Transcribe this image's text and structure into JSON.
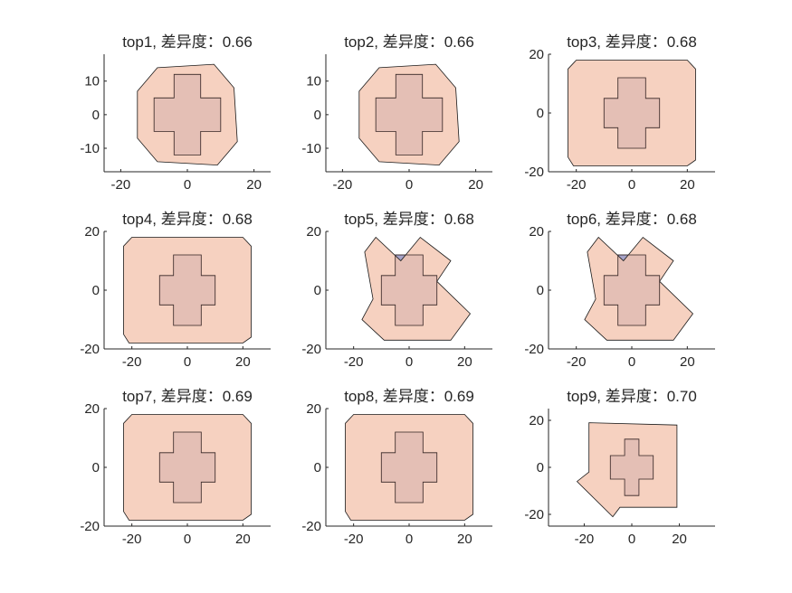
{
  "colors": {
    "background": "#ffffff",
    "axis": "#262626",
    "outer_fill": "#f4c6b0",
    "inner_fill": "#a6a3c9",
    "edge": "#1a1a1a"
  },
  "chart_data": [
    {
      "type": "area",
      "title": "top1, 差异度：0.66",
      "xlim": [
        -25,
        25
      ],
      "ylim": [
        -17,
        18
      ],
      "xticks": [
        -20,
        0,
        20
      ],
      "yticks": [
        -10,
        0,
        10
      ],
      "outer": [
        [
          -15,
          7
        ],
        [
          -9,
          14
        ],
        [
          8,
          15
        ],
        [
          14,
          8
        ],
        [
          15,
          -8
        ],
        [
          9,
          -15
        ],
        [
          -9,
          -14
        ],
        [
          -15,
          -7
        ]
      ],
      "inner": [
        [
          -4,
          12
        ],
        [
          4,
          12
        ],
        [
          4,
          5
        ],
        [
          10,
          5
        ],
        [
          10,
          -5
        ],
        [
          4,
          -5
        ],
        [
          4,
          -12
        ],
        [
          -4,
          -12
        ],
        [
          -4,
          -5
        ],
        [
          -10,
          -5
        ],
        [
          -10,
          5
        ],
        [
          -4,
          5
        ]
      ]
    },
    {
      "type": "area",
      "title": "top2, 差异度：0.66",
      "xlim": [
        -25,
        25
      ],
      "ylim": [
        -17,
        18
      ],
      "xticks": [
        -20,
        0,
        20
      ],
      "yticks": [
        -10,
        0,
        10
      ],
      "outer": [
        [
          -15,
          7
        ],
        [
          -9,
          14
        ],
        [
          8,
          15
        ],
        [
          14,
          8
        ],
        [
          15,
          -8
        ],
        [
          9,
          -15
        ],
        [
          -9,
          -14
        ],
        [
          -15,
          -7
        ]
      ],
      "inner": [
        [
          -4,
          12
        ],
        [
          4,
          12
        ],
        [
          4,
          5
        ],
        [
          10,
          5
        ],
        [
          10,
          -5
        ],
        [
          4,
          -5
        ],
        [
          4,
          -12
        ],
        [
          -4,
          -12
        ],
        [
          -4,
          -5
        ],
        [
          -10,
          -5
        ],
        [
          -10,
          5
        ],
        [
          -4,
          5
        ]
      ]
    },
    {
      "type": "area",
      "title": "top3, 差异度：0.68",
      "xlim": [
        -30,
        30
      ],
      "ylim": [
        -20,
        20
      ],
      "xticks": [
        -20,
        0,
        20
      ],
      "yticks": [
        -20,
        0,
        20
      ],
      "outer": [
        [
          -23,
          15
        ],
        [
          -20,
          18
        ],
        [
          20,
          18
        ],
        [
          23,
          15
        ],
        [
          23,
          -16
        ],
        [
          20,
          -18
        ],
        [
          -21,
          -18
        ],
        [
          -23,
          -15
        ]
      ],
      "inner": [
        [
          -5,
          12
        ],
        [
          5,
          12
        ],
        [
          5,
          5
        ],
        [
          10,
          5
        ],
        [
          10,
          -5
        ],
        [
          5,
          -5
        ],
        [
          5,
          -12
        ],
        [
          -5,
          -12
        ],
        [
          -5,
          -5
        ],
        [
          -10,
          -5
        ],
        [
          -10,
          5
        ],
        [
          -5,
          5
        ]
      ]
    },
    {
      "type": "area",
      "title": "top4, 差异度：0.68",
      "xlim": [
        -30,
        30
      ],
      "ylim": [
        -20,
        20
      ],
      "xticks": [
        -20,
        0,
        20
      ],
      "yticks": [
        -20,
        0,
        20
      ],
      "outer": [
        [
          -23,
          15
        ],
        [
          -20,
          18
        ],
        [
          20,
          18
        ],
        [
          23,
          15
        ],
        [
          23,
          -16
        ],
        [
          20,
          -18
        ],
        [
          -21,
          -18
        ],
        [
          -23,
          -15
        ]
      ],
      "inner": [
        [
          -5,
          12
        ],
        [
          5,
          12
        ],
        [
          5,
          5
        ],
        [
          10,
          5
        ],
        [
          10,
          -5
        ],
        [
          5,
          -5
        ],
        [
          5,
          -12
        ],
        [
          -5,
          -12
        ],
        [
          -5,
          -5
        ],
        [
          -10,
          -5
        ],
        [
          -10,
          5
        ],
        [
          -5,
          5
        ]
      ]
    },
    {
      "type": "area",
      "title": "top5, 差异度：0.68",
      "xlim": [
        -30,
        30
      ],
      "ylim": [
        -20,
        20
      ],
      "xticks": [
        -20,
        0,
        20
      ],
      "yticks": [
        -20,
        0,
        20
      ],
      "outer": [
        [
          -16,
          13
        ],
        [
          -12,
          18
        ],
        [
          -3,
          10
        ],
        [
          4,
          18
        ],
        [
          15,
          10
        ],
        [
          10,
          3
        ],
        [
          22,
          -8
        ],
        [
          15,
          -17
        ],
        [
          -9,
          -17
        ],
        [
          -17,
          -10
        ],
        [
          -13,
          -3
        ]
      ],
      "inner": [
        [
          -5,
          12
        ],
        [
          5,
          12
        ],
        [
          5,
          5
        ],
        [
          10,
          5
        ],
        [
          10,
          -5
        ],
        [
          5,
          -5
        ],
        [
          5,
          -12
        ],
        [
          -5,
          -12
        ],
        [
          -5,
          -5
        ],
        [
          -10,
          -5
        ],
        [
          -10,
          5
        ],
        [
          -5,
          5
        ]
      ]
    },
    {
      "type": "area",
      "title": "top6, 差异度：0.68",
      "xlim": [
        -30,
        30
      ],
      "ylim": [
        -20,
        20
      ],
      "xticks": [
        -20,
        0,
        20
      ],
      "yticks": [
        -20,
        0,
        20
      ],
      "outer": [
        [
          -16,
          13
        ],
        [
          -12,
          18
        ],
        [
          -3,
          10
        ],
        [
          4,
          18
        ],
        [
          15,
          10
        ],
        [
          10,
          3
        ],
        [
          22,
          -8
        ],
        [
          15,
          -17
        ],
        [
          -9,
          -17
        ],
        [
          -17,
          -10
        ],
        [
          -13,
          -3
        ]
      ],
      "inner": [
        [
          -5,
          12
        ],
        [
          5,
          12
        ],
        [
          5,
          5
        ],
        [
          10,
          5
        ],
        [
          10,
          -5
        ],
        [
          5,
          -5
        ],
        [
          5,
          -12
        ],
        [
          -5,
          -12
        ],
        [
          -5,
          -5
        ],
        [
          -10,
          -5
        ],
        [
          -10,
          5
        ],
        [
          -5,
          5
        ]
      ]
    },
    {
      "type": "area",
      "title": "top7, 差异度：0.69",
      "xlim": [
        -30,
        30
      ],
      "ylim": [
        -20,
        20
      ],
      "xticks": [
        -20,
        0,
        20
      ],
      "yticks": [
        -20,
        0,
        20
      ],
      "outer": [
        [
          -23,
          15
        ],
        [
          -20,
          18
        ],
        [
          20,
          18
        ],
        [
          23,
          15
        ],
        [
          23,
          -16
        ],
        [
          20,
          -18
        ],
        [
          -21,
          -18
        ],
        [
          -23,
          -15
        ]
      ],
      "inner": [
        [
          -5,
          12
        ],
        [
          5,
          12
        ],
        [
          5,
          5
        ],
        [
          10,
          5
        ],
        [
          10,
          -5
        ],
        [
          5,
          -5
        ],
        [
          5,
          -12
        ],
        [
          -5,
          -12
        ],
        [
          -5,
          -5
        ],
        [
          -10,
          -5
        ],
        [
          -10,
          5
        ],
        [
          -5,
          5
        ]
      ]
    },
    {
      "type": "area",
      "title": "top8, 差异度：0.69",
      "xlim": [
        -30,
        30
      ],
      "ylim": [
        -20,
        20
      ],
      "xticks": [
        -20,
        0,
        20
      ],
      "yticks": [
        -20,
        0,
        20
      ],
      "outer": [
        [
          -23,
          15
        ],
        [
          -20,
          18
        ],
        [
          20,
          18
        ],
        [
          23,
          15
        ],
        [
          23,
          -16
        ],
        [
          20,
          -18
        ],
        [
          -21,
          -18
        ],
        [
          -23,
          -15
        ]
      ],
      "inner": [
        [
          -5,
          12
        ],
        [
          5,
          12
        ],
        [
          5,
          5
        ],
        [
          10,
          5
        ],
        [
          10,
          -5
        ],
        [
          5,
          -5
        ],
        [
          5,
          -12
        ],
        [
          -5,
          -12
        ],
        [
          -5,
          -5
        ],
        [
          -10,
          -5
        ],
        [
          -10,
          5
        ],
        [
          -5,
          5
        ]
      ]
    },
    {
      "type": "area",
      "title": "top9, 差异度：0.70",
      "xlim": [
        -35,
        35
      ],
      "ylim": [
        -25,
        25
      ],
      "xticks": [
        -20,
        0,
        20
      ],
      "yticks": [
        -20,
        0,
        20
      ],
      "outer": [
        [
          -18,
          19
        ],
        [
          19,
          18
        ],
        [
          19,
          -17
        ],
        [
          -5,
          -17
        ],
        [
          -8,
          -21
        ],
        [
          -23,
          -6
        ],
        [
          -18,
          -2
        ]
      ],
      "inner": [
        [
          -3,
          12
        ],
        [
          3,
          12
        ],
        [
          3,
          5
        ],
        [
          9,
          5
        ],
        [
          9,
          -5
        ],
        [
          3,
          -5
        ],
        [
          3,
          -12
        ],
        [
          -3,
          -12
        ],
        [
          -3,
          -5
        ],
        [
          -9,
          -5
        ],
        [
          -9,
          5
        ],
        [
          -3,
          5
        ]
      ]
    }
  ]
}
